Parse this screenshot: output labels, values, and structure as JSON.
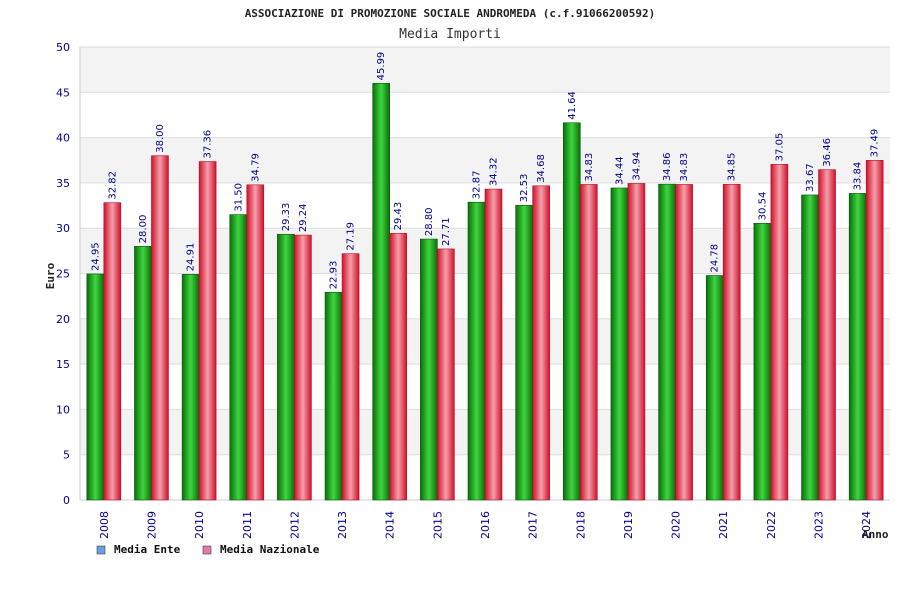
{
  "chart_data": {
    "type": "bar",
    "title": "ASSOCIAZIONE DI PROMOZIONE SOCIALE ANDROMEDA (c.f.91066200592)",
    "subtitle": "Media Importi",
    "xlabel": "Anno",
    "ylabel": "Euro",
    "ylim": [
      0,
      50
    ],
    "yticks": [
      0,
      5,
      10,
      15,
      20,
      25,
      30,
      35,
      40,
      45,
      50
    ],
    "grid": true,
    "legend_position": "bottom-left",
    "categories": [
      "2008",
      "2009",
      "2010",
      "2011",
      "2012",
      "2013",
      "2014",
      "2015",
      "2016",
      "2017",
      "2018",
      "2019",
      "2020",
      "2021",
      "2022",
      "2023",
      "2024"
    ],
    "series": [
      {
        "name": "Media Ente",
        "values": [
          24.95,
          28.0,
          24.91,
          31.5,
          29.33,
          22.93,
          45.99,
          28.8,
          32.87,
          32.53,
          41.64,
          34.44,
          34.86,
          24.78,
          30.54,
          33.67,
          33.84
        ],
        "labels": [
          "24.95",
          "28.00",
          "24.91",
          "31.50",
          "29.33",
          "22.93",
          "45.99",
          "28.80",
          "32.87",
          "32.53",
          "41.64",
          "34.44",
          "34.86",
          "24.78",
          "30.54",
          "33.67",
          "33.84"
        ],
        "bar_color": "#1fa81f",
        "legend_color": "#6a9fe0"
      },
      {
        "name": "Media Nazionale",
        "values": [
          32.82,
          38.0,
          37.36,
          34.79,
          29.24,
          27.19,
          29.43,
          27.71,
          34.32,
          34.68,
          34.83,
          34.94,
          34.83,
          34.85,
          37.05,
          36.46,
          37.49
        ],
        "labels": [
          "32.82",
          "38.00",
          "37.36",
          "34.79",
          "29.24",
          "27.19",
          "29.43",
          "27.71",
          "34.32",
          "34.68",
          "34.83",
          "34.94",
          "34.83",
          "34.85",
          "37.05",
          "36.46",
          "37.49"
        ],
        "bar_color": "#e8304a",
        "legend_color": "#e07aa8"
      }
    ]
  }
}
